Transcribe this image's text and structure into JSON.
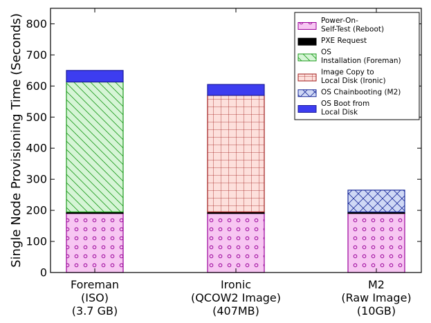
{
  "chart_data": {
    "type": "bar",
    "stacked": true,
    "categories": [
      [
        "Foreman",
        "(ISO)",
        "(3.7 GB)"
      ],
      [
        "Ironic",
        "(QCOW2 Image)",
        "(407MB)"
      ],
      [
        "M2",
        "(Raw Image)",
        "(10GB)"
      ]
    ],
    "ylabel": "Single Node Provisioning Time (Seconds)",
    "xlabel": "",
    "ylim": [
      0,
      850
    ],
    "yticks": [
      0,
      100,
      200,
      300,
      400,
      500,
      600,
      700,
      800
    ],
    "grid": false,
    "legend_position": "top-right",
    "series": [
      {
        "name": [
          "Power-On-",
          "Self-Test (Reboot)"
        ],
        "fill": "#f7c6f2",
        "stroke": "#990099",
        "pattern": "circles",
        "values": [
          190,
          190,
          190
        ]
      },
      {
        "name": [
          "PXE Request"
        ],
        "fill": "#000000",
        "stroke": "#000000",
        "pattern": "solid",
        "values": [
          5,
          5,
          5
        ]
      },
      {
        "name": [
          "OS",
          "Installation (Foreman)"
        ],
        "fill": "#d6f5d6",
        "stroke": "#1a9a1a",
        "pattern": "diagonal",
        "values": [
          418,
          0,
          0
        ]
      },
      {
        "name": [
          "Image Copy to",
          "Local Disk (Ironic)"
        ],
        "fill": "#fde0dc",
        "stroke": "#a01a1a",
        "pattern": "grid",
        "values": [
          0,
          375,
          0
        ]
      },
      {
        "name": [
          "OS Chainbooting (M2)"
        ],
        "fill": "#cfd8f5",
        "stroke": "#1a2a9a",
        "pattern": "crosshatch",
        "values": [
          0,
          0,
          70
        ]
      },
      {
        "name": [
          "OS Boot from",
          "Local Disk"
        ],
        "fill": "#3d3df0",
        "stroke": "#1a1a9a",
        "pattern": "solid",
        "values": [
          37,
          35,
          0
        ]
      }
    ]
  }
}
